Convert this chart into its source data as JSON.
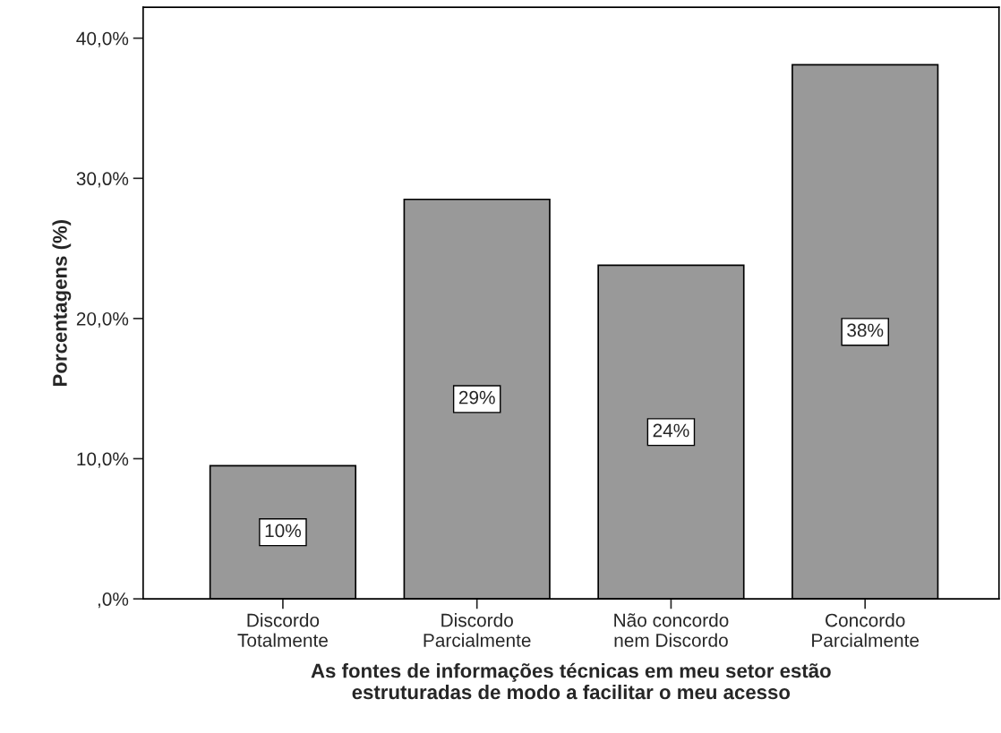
{
  "chart_data": {
    "type": "bar",
    "xlabel": "As fontes de informações técnicas em meu setor estão\nestruturadas de modo a facilitar o meu acesso",
    "ylabel": "Porcentagens (%)",
    "categories": [
      "Discordo\nTotalmente",
      "Discordo\nParcialmente",
      "Não concordo\nnem Discordo",
      "Concordo\nParcialmente"
    ],
    "values": [
      9.5,
      28.5,
      23.8,
      38.1
    ],
    "value_labels": [
      "10%",
      "29%",
      "24%",
      "38%"
    ],
    "color": "#999999",
    "ylim": [
      0,
      42.2
    ],
    "yticks": [
      {
        "value": 0,
        "label": ",0%"
      },
      {
        "value": 10,
        "label": "10,0%"
      },
      {
        "value": 20,
        "label": "20,0%"
      },
      {
        "value": 30,
        "label": "30,0%"
      },
      {
        "value": 40,
        "label": "40,0%"
      }
    ],
    "grid": false,
    "legend": false
  }
}
